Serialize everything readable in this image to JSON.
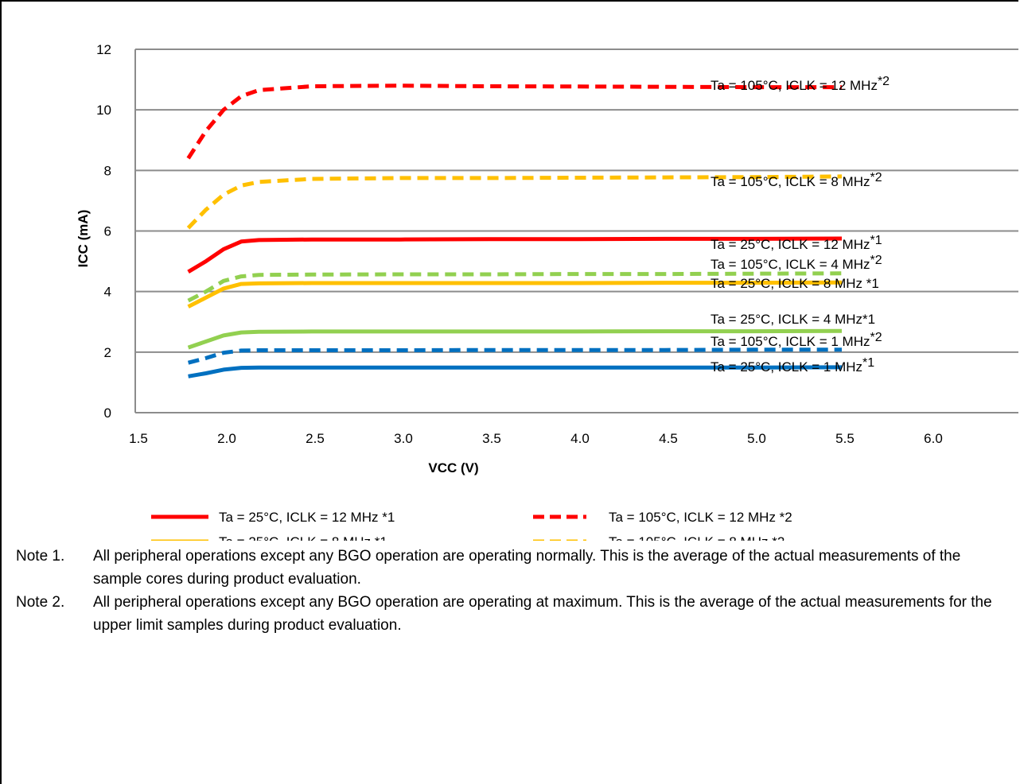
{
  "chart_data": {
    "type": "line",
    "xlabel": "VCC (V)",
    "ylabel": "ICC (mA)",
    "xlim": [
      1.5,
      6.5
    ],
    "ylim": [
      0,
      12
    ],
    "x_ticks": [
      "1.5",
      "2.0",
      "2.5",
      "3.0",
      "3.5",
      "4.0",
      "4.5",
      "5.0",
      "5.5",
      "6.0"
    ],
    "y_ticks": [
      "0",
      "2",
      "4",
      "6",
      "8",
      "10",
      "12"
    ],
    "grid": "horizontal",
    "legend_position": "bottom",
    "x": [
      1.8,
      1.9,
      2.0,
      2.1,
      2.2,
      2.5,
      3.0,
      3.5,
      4.0,
      4.5,
      5.0,
      5.5
    ],
    "series": [
      {
        "name": "Ta = 25°C, ICLK = 12 MHz *1",
        "color": "#ff0000",
        "dash": false,
        "values": [
          4.65,
          5.0,
          5.4,
          5.65,
          5.7,
          5.72,
          5.72,
          5.73,
          5.73,
          5.74,
          5.74,
          5.75
        ]
      },
      {
        "name": "Ta = 25°C, ICLK = 8 MHz *1",
        "color": "#ffc000",
        "dash": false,
        "values": [
          3.5,
          3.8,
          4.1,
          4.25,
          4.27,
          4.28,
          4.28,
          4.28,
          4.28,
          4.29,
          4.29,
          4.3
        ]
      },
      {
        "name": "Ta = 25°C, ICLK = 4 MHz *1",
        "color": "#92d050",
        "dash": false,
        "values": [
          2.15,
          2.35,
          2.55,
          2.65,
          2.67,
          2.68,
          2.68,
          2.68,
          2.68,
          2.69,
          2.69,
          2.7
        ]
      },
      {
        "name": "Ta = 25°C, ICLK = 1 MHz *1",
        "color": "#0070c0",
        "dash": false,
        "values": [
          1.2,
          1.3,
          1.42,
          1.48,
          1.49,
          1.49,
          1.49,
          1.49,
          1.49,
          1.49,
          1.49,
          1.5
        ]
      },
      {
        "name": "Ta = 105°C, ICLK = 12 MHz *2",
        "color": "#ff0000",
        "dash": true,
        "values": [
          8.4,
          9.3,
          10.0,
          10.45,
          10.65,
          10.78,
          10.8,
          10.78,
          10.77,
          10.76,
          10.75,
          10.75
        ]
      },
      {
        "name": "Ta = 105°C, ICLK = 8 MHz *2",
        "color": "#ffc000",
        "dash": true,
        "values": [
          6.1,
          6.7,
          7.2,
          7.5,
          7.62,
          7.72,
          7.75,
          7.75,
          7.76,
          7.77,
          7.78,
          7.8
        ]
      },
      {
        "name": "Ta = 105°C, ICLK = 4 MHz *2",
        "color": "#92d050",
        "dash": true,
        "values": [
          3.7,
          4.0,
          4.35,
          4.5,
          4.55,
          4.56,
          4.57,
          4.57,
          4.58,
          4.58,
          4.59,
          4.6
        ]
      },
      {
        "name": "Ta = 105°C, ICLK = 1 MHz *2",
        "color": "#0070c0",
        "dash": true,
        "values": [
          1.65,
          1.8,
          1.98,
          2.05,
          2.06,
          2.06,
          2.06,
          2.07,
          2.07,
          2.07,
          2.08,
          2.08
        ]
      }
    ],
    "annotations": [
      {
        "text": "Ta = 105°C, ICLK = 12 MHz",
        "sup": "*2"
      },
      {
        "text": "Ta = 105°C, ICLK = 8 MHz",
        "sup": "*2"
      },
      {
        "text": "Ta = 25°C, ICLK = 12 MHz",
        "sup": "*1"
      },
      {
        "text": "Ta = 105°C, ICLK = 4 MHz",
        "sup": "*2"
      },
      {
        "text": "Ta = 25°C, ICLK = 8 MHz  *1",
        "sup": ""
      },
      {
        "text": "Ta = 25°C, ICLK = 4 MHz*1",
        "sup": ""
      },
      {
        "text": "Ta = 105°C, ICLK = 1 MHz",
        "sup": "*2"
      },
      {
        "text": "Ta = 25°C, ICLK = 1 MHz",
        "sup": "*1"
      }
    ]
  },
  "notes": [
    {
      "label": "Note 1.",
      "text": "All peripheral operations except any BGO operation are operating normally. This is the average of the actual measurements of the sample cores during product evaluation."
    },
    {
      "label": "Note 2.",
      "text": "All peripheral operations except any BGO operation are operating at maximum. This is the average of the actual measurements for the upper limit samples during product evaluation."
    }
  ]
}
